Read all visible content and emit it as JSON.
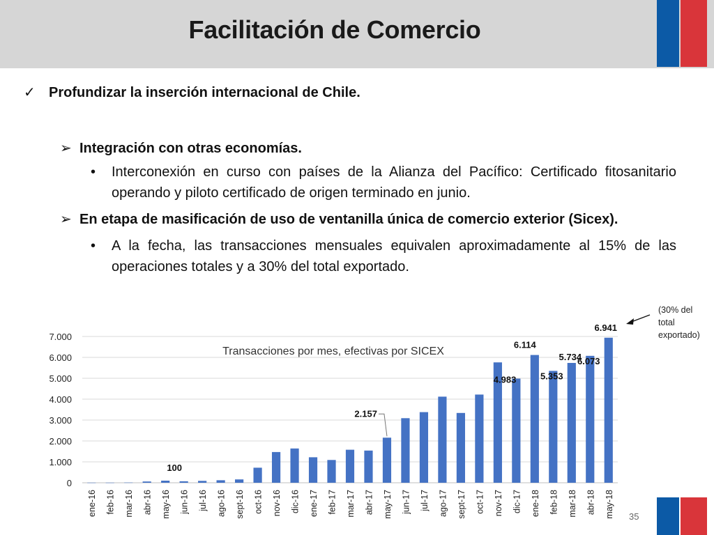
{
  "header": {
    "title": "Facilitación de Comercio"
  },
  "content": {
    "check_mark": "✓",
    "heading": "Profundizar la inserción internacional de Chile.",
    "arrow": "➢",
    "bullet_dot": "•",
    "section1": {
      "title": "Integración con otras economías.",
      "bullet": "Interconexión en curso con países de la Alianza del Pacífico: Certificado fitosanitario operando y piloto certificado de origen terminado en junio."
    },
    "section2": {
      "title": "En etapa de masificación de uso de ventanilla única de comercio exterior (Sicex).",
      "bullet": "A la fecha, las transacciones mensuales equivalen aproximadamente al 15% de las operaciones totales y a 30% del total exportado."
    }
  },
  "page_number": "35",
  "colors": {
    "bar": "#4472c4",
    "flag_blue": "#0c5aa6",
    "flag_red": "#d9353a",
    "header_bg": "#d6d6d6"
  },
  "chart_data": {
    "type": "bar",
    "title": "Transacciones por mes, efectivas por SICEX",
    "xlabel": "",
    "ylabel": "",
    "ylim": [
      0,
      7000
    ],
    "yticks": [
      "0",
      "1.000",
      "2.000",
      "3.000",
      "4.000",
      "5.000",
      "6.000",
      "7.000"
    ],
    "grid": true,
    "categories": [
      "ene-16",
      "feb-16",
      "mar-16",
      "abr-16",
      "may-16",
      "jun-16",
      "jul-16",
      "ago-16",
      "sept-16",
      "oct-16",
      "nov-16",
      "dic-16",
      "ene-17",
      "feb-17",
      "mar-17",
      "abr-17",
      "may-17",
      "jun-17",
      "jul-17",
      "ago-17",
      "sept-17",
      "oct-17",
      "nov-17",
      "dic-17",
      "ene-18",
      "feb-18",
      "mar-18",
      "abr-18",
      "may-18"
    ],
    "values": [
      5,
      5,
      10,
      60,
      100,
      70,
      90,
      120,
      160,
      720,
      1470,
      1640,
      1220,
      1090,
      1580,
      1540,
      2157,
      3090,
      3380,
      4120,
      3340,
      4220,
      5760,
      4983,
      6114,
      5353,
      5734,
      6073,
      6941
    ],
    "data_labels": [
      {
        "index": 4,
        "text": "100"
      },
      {
        "index": 16,
        "text": "2.157"
      },
      {
        "index": 23,
        "text": "4.983"
      },
      {
        "index": 24,
        "text": "6.114"
      },
      {
        "index": 25,
        "text": "5.353"
      },
      {
        "index": 26,
        "text": "5.734"
      },
      {
        "index": 27,
        "text": "6.073"
      },
      {
        "index": 28,
        "text": "6.941"
      }
    ],
    "annotation": {
      "lines": [
        "(30% del",
        "total",
        "exportado)"
      ]
    }
  }
}
